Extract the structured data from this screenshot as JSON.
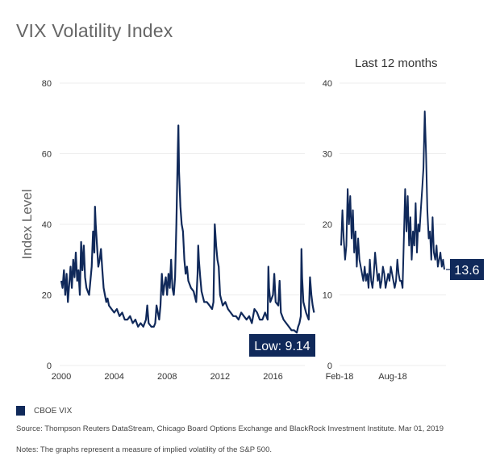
{
  "title": "VIX Volatility Index",
  "subtitle": "Last 12 months",
  "legend": {
    "label": "CBOE VIX",
    "color": "#10295a"
  },
  "source": "Source: Thompson Reuters DataStream, Chicago Board Options Exchange and BlackRock Investment Institute. Mar 01, 2019",
  "notes": "Notes: The graphs represent a measure of implied volatility of the S&P 500.",
  "chart_data": [
    {
      "type": "line",
      "title": "VIX Volatility Index",
      "ylabel": "Index Level",
      "xlabel": "",
      "xlim": [
        2000,
        2019.2
      ],
      "ylim": [
        0,
        80
      ],
      "yticks": [
        0,
        20,
        40,
        60,
        80
      ],
      "xticks": [
        2000,
        2004,
        2008,
        2012,
        2016
      ],
      "xtick_labels": [
        "2000",
        "2004",
        "2008",
        "2012",
        "2016"
      ],
      "grid": true,
      "annotation": {
        "label": "Low: 9.14",
        "x": 2017.8,
        "y": 9.14
      },
      "series": [
        {
          "name": "CBOE VIX",
          "x": [
            2000.0,
            2000.1,
            2000.2,
            2000.3,
            2000.4,
            2000.5,
            2000.6,
            2000.7,
            2000.8,
            2000.9,
            2001.0,
            2001.1,
            2001.2,
            2001.3,
            2001.4,
            2001.5,
            2001.6,
            2001.7,
            2001.8,
            2001.9,
            2002.0,
            2002.1,
            2002.2,
            2002.3,
            2002.4,
            2002.5,
            2002.55,
            2002.6,
            2002.7,
            2002.8,
            2002.9,
            2003.0,
            2003.1,
            2003.2,
            2003.3,
            2003.4,
            2003.5,
            2003.6,
            2003.8,
            2004.0,
            2004.2,
            2004.4,
            2004.6,
            2004.8,
            2005.0,
            2005.2,
            2005.4,
            2005.6,
            2005.8,
            2006.0,
            2006.2,
            2006.4,
            2006.5,
            2006.6,
            2006.8,
            2007.0,
            2007.1,
            2007.2,
            2007.4,
            2007.5,
            2007.6,
            2007.7,
            2007.8,
            2007.9,
            2008.0,
            2008.1,
            2008.2,
            2008.3,
            2008.4,
            2008.5,
            2008.6,
            2008.7,
            2008.8,
            2008.85,
            2008.9,
            2009.0,
            2009.1,
            2009.2,
            2009.3,
            2009.4,
            2009.5,
            2009.6,
            2009.8,
            2010.0,
            2010.2,
            2010.3,
            2010.35,
            2010.4,
            2010.5,
            2010.6,
            2010.8,
            2011.0,
            2011.2,
            2011.4,
            2011.5,
            2011.6,
            2011.7,
            2011.8,
            2011.9,
            2012.0,
            2012.2,
            2012.4,
            2012.6,
            2012.8,
            2013.0,
            2013.2,
            2013.4,
            2013.6,
            2013.8,
            2014.0,
            2014.2,
            2014.4,
            2014.6,
            2014.8,
            2015.0,
            2015.2,
            2015.4,
            2015.6,
            2015.65,
            2015.7,
            2015.8,
            2016.0,
            2016.1,
            2016.2,
            2016.4,
            2016.5,
            2016.6,
            2016.8,
            2017.0,
            2017.2,
            2017.4,
            2017.6,
            2017.8,
            2017.9,
            2018.0,
            2018.1,
            2018.15,
            2018.2,
            2018.3,
            2018.5,
            2018.7,
            2018.8,
            2018.9,
            2019.0,
            2019.1
          ],
          "y": [
            24,
            22,
            27,
            20,
            26,
            18,
            23,
            28,
            22,
            30,
            25,
            32,
            24,
            27,
            20,
            35,
            27,
            34,
            25,
            22,
            21,
            20,
            24,
            28,
            38,
            32,
            45,
            40,
            34,
            28,
            30,
            33,
            27,
            22,
            20,
            18,
            19,
            17,
            16,
            15,
            16,
            14,
            15,
            13,
            13,
            14,
            12,
            13,
            11,
            12,
            11,
            13,
            17,
            12,
            11,
            11,
            12,
            17,
            13,
            17,
            26,
            20,
            23,
            25,
            20,
            26,
            22,
            30,
            22,
            20,
            25,
            40,
            60,
            68,
            55,
            45,
            40,
            38,
            30,
            26,
            28,
            24,
            22,
            21,
            18,
            26,
            34,
            30,
            25,
            21,
            18,
            18,
            17,
            16,
            18,
            40,
            34,
            30,
            28,
            20,
            17,
            18,
            16,
            15,
            14,
            14,
            13,
            15,
            14,
            13,
            14,
            12,
            16,
            15,
            13,
            13,
            15,
            13,
            28,
            22,
            18,
            20,
            26,
            18,
            17,
            24,
            15,
            13,
            12,
            11,
            10,
            10,
            9.3,
            11,
            12,
            14,
            33,
            25,
            18,
            15,
            13,
            25,
            20,
            17,
            15
          ]
        }
      ]
    },
    {
      "type": "line",
      "title": "Last 12 months",
      "ylim": [
        0,
        40
      ],
      "yticks": [
        0,
        10,
        20,
        30,
        40
      ],
      "xticks": [
        "Feb-18",
        "Aug-18"
      ],
      "grid": true,
      "annotation": {
        "label": "13.6",
        "y": 13.6
      },
      "series": [
        {
          "name": "CBOE VIX",
          "x_label_start": "Feb-18",
          "y": [
            17,
            22,
            18,
            15,
            17,
            25,
            20,
            24,
            18,
            22,
            16,
            19,
            14,
            18,
            15,
            14,
            13,
            12,
            14,
            12,
            13,
            11,
            15,
            12,
            11,
            13,
            16,
            14,
            12,
            13,
            11,
            12,
            14,
            13,
            11,
            12,
            13,
            12,
            14,
            13,
            12,
            11,
            12,
            15,
            13,
            12,
            12,
            11,
            18,
            25,
            19,
            24,
            17,
            21,
            15,
            19,
            17,
            23,
            16,
            20,
            19,
            22,
            25,
            28,
            36,
            30,
            22,
            18,
            19,
            15,
            21,
            16,
            15,
            17,
            14,
            15,
            16,
            14,
            15,
            13.6
          ]
        }
      ]
    }
  ]
}
